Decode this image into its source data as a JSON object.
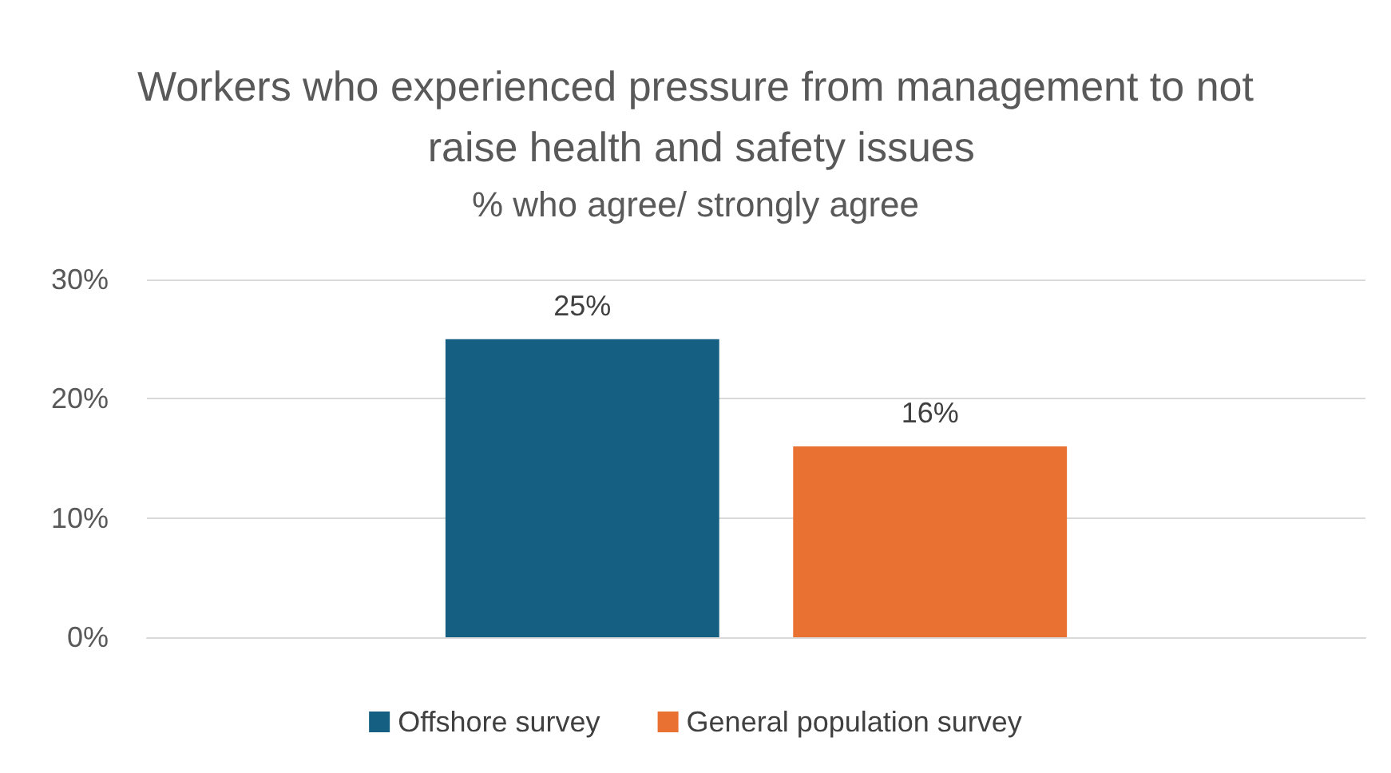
{
  "chart_data": {
    "type": "bar",
    "title": "Workers who experienced pressure from management to not raise health and safety issues",
    "subtitle": "% who agree/ strongly agree",
    "categories": [
      null
    ],
    "series": [
      {
        "name": "Offshore survey",
        "color": "#156082",
        "values": [
          25
        ],
        "value_labels": [
          "25%"
        ]
      },
      {
        "name": "General population survey",
        "color": "#e97132",
        "values": [
          16
        ],
        "value_labels": [
          "16%"
        ]
      }
    ],
    "ylim": [
      0,
      30
    ],
    "yticks": [
      {
        "value": 0,
        "label": "0%"
      },
      {
        "value": 10,
        "label": "10%"
      },
      {
        "value": 20,
        "label": "20%"
      },
      {
        "value": 30,
        "label": "30%"
      }
    ],
    "grid": "y",
    "legend": "bottom"
  }
}
